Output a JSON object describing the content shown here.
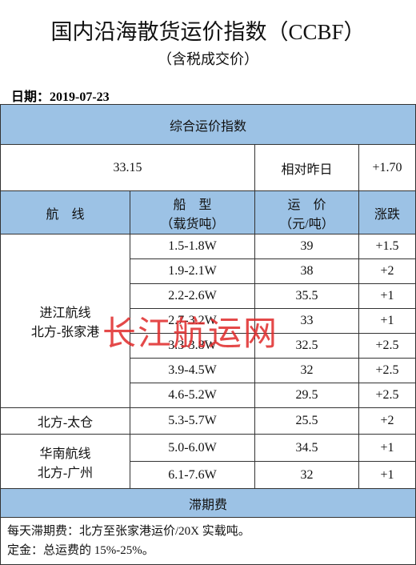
{
  "header": {
    "title": "国内沿海散货运价指数（CCBF）",
    "subtitle": "（含税成交价）",
    "date": "日期：2019-07-23"
  },
  "table": {
    "index_header": "综合运价指数",
    "index_value": "33.15",
    "compare_label": "相对昨日",
    "change": "+1.70",
    "columns": [
      [
        "航　线"
      ],
      [
        "船　型",
        "（载货吨）"
      ],
      [
        "运　价",
        "（元/吨）"
      ],
      [
        "涨跌"
      ]
    ],
    "groups": [
      {
        "route": [
          "进江航线",
          "北方-张家港"
        ],
        "rows": [
          [
            "1.5-1.8W",
            "39",
            "+1.5"
          ],
          [
            "1.9-2.1W",
            "38",
            "+2"
          ],
          [
            "2.2-2.6W",
            "35.5",
            "+1"
          ],
          [
            "2.7-3.2W",
            "33",
            "+1"
          ],
          [
            "3.3-3.8W",
            "32.5",
            "+2.5"
          ],
          [
            "3.9-4.5W",
            "32",
            "+2.5"
          ],
          [
            "4.6-5.2W",
            "29.5",
            "+2.5"
          ]
        ]
      },
      {
        "route": [
          "北方-太仓"
        ],
        "rows": [
          [
            "5.3-5.7W",
            "25.5",
            "+2"
          ]
        ]
      },
      {
        "route": [
          "华南航线",
          "北方-广州"
        ],
        "rows": [
          [
            "5.0-6.0W",
            "34.5",
            "+1"
          ],
          [
            "6.1-7.6W",
            "32",
            "+1"
          ]
        ]
      }
    ],
    "demurrage_header": "滞期费",
    "notes": [
      "每天滞期费：北方至张家港运价/20X 实载吨。",
      "定金：总运费的 15%-25%。"
    ]
  },
  "watermark": "长江航运网"
}
